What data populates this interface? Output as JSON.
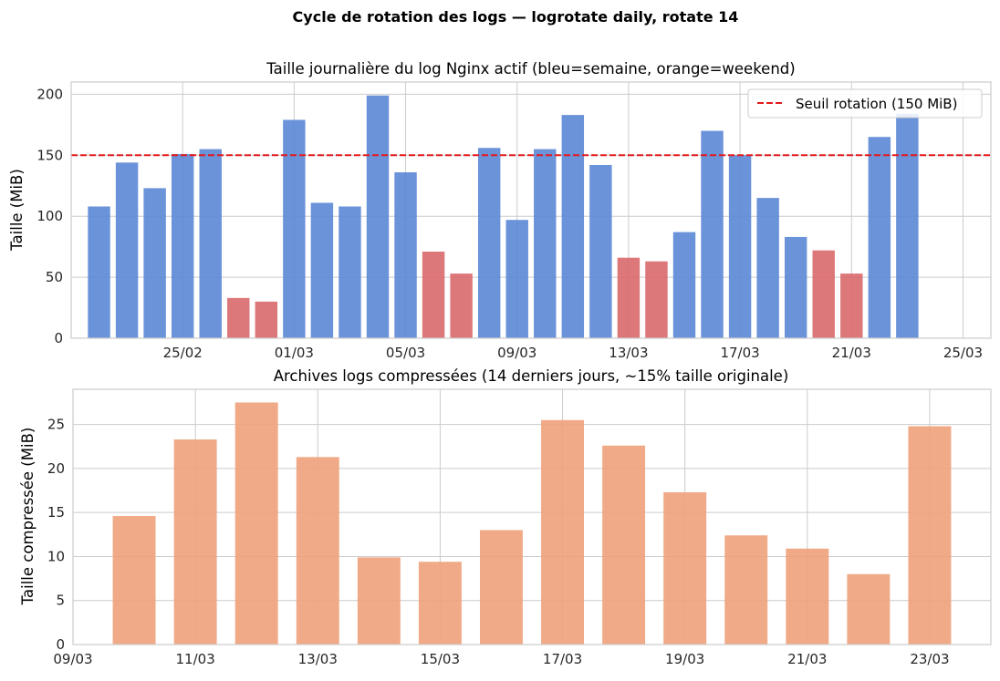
{
  "suptitle": "Cycle de rotation des logs — logrotate daily, rotate 14",
  "chart_data": [
    {
      "type": "bar",
      "title": "Taille journalière du log Nginx actif (bleu=semaine, orange=weekend)",
      "xlabel": "",
      "ylabel": "Taille (MiB)",
      "x_type": "date",
      "xlim": [
        "2025-02-21",
        "2025-03-26"
      ],
      "ylim": [
        0,
        210
      ],
      "yticks": [
        0,
        50,
        100,
        150,
        200
      ],
      "xticks": [
        "2025-02-25",
        "2025-03-01",
        "2025-03-05",
        "2025-03-09",
        "2025-03-13",
        "2025-03-17",
        "2025-03-21",
        "2025-03-25"
      ],
      "xtick_labels": [
        "25/02",
        "01/03",
        "05/03",
        "09/03",
        "13/03",
        "17/03",
        "21/03",
        "25/03"
      ],
      "grid": true,
      "colors": {
        "weekday": "#5b87d6",
        "weekend": "#d9696b",
        "threshold": "#e31a1c"
      },
      "threshold": {
        "value": 150,
        "label": "Seuil rotation (150 MiB)",
        "style": "dashed"
      },
      "legend_position": "top-right",
      "bars": [
        {
          "date": "2025-02-22",
          "value": 108,
          "weekend": false
        },
        {
          "date": "2025-02-23",
          "value": 144,
          "weekend": false
        },
        {
          "date": "2025-02-24",
          "value": 123,
          "weekend": false
        },
        {
          "date": "2025-02-25",
          "value": 151,
          "weekend": false
        },
        {
          "date": "2025-02-26",
          "value": 155,
          "weekend": false
        },
        {
          "date": "2025-02-27",
          "value": 33,
          "weekend": true
        },
        {
          "date": "2025-02-28",
          "value": 30,
          "weekend": true
        },
        {
          "date": "2025-03-01",
          "value": 179,
          "weekend": false
        },
        {
          "date": "2025-03-02",
          "value": 111,
          "weekend": false
        },
        {
          "date": "2025-03-03",
          "value": 108,
          "weekend": false
        },
        {
          "date": "2025-03-04",
          "value": 199,
          "weekend": false
        },
        {
          "date": "2025-03-05",
          "value": 136,
          "weekend": false
        },
        {
          "date": "2025-03-06",
          "value": 71,
          "weekend": true
        },
        {
          "date": "2025-03-07",
          "value": 53,
          "weekend": true
        },
        {
          "date": "2025-03-08",
          "value": 156,
          "weekend": false
        },
        {
          "date": "2025-03-09",
          "value": 97,
          "weekend": false
        },
        {
          "date": "2025-03-10",
          "value": 155,
          "weekend": false
        },
        {
          "date": "2025-03-11",
          "value": 183,
          "weekend": false
        },
        {
          "date": "2025-03-12",
          "value": 142,
          "weekend": false
        },
        {
          "date": "2025-03-13",
          "value": 66,
          "weekend": true
        },
        {
          "date": "2025-03-14",
          "value": 63,
          "weekend": true
        },
        {
          "date": "2025-03-15",
          "value": 87,
          "weekend": false
        },
        {
          "date": "2025-03-16",
          "value": 170,
          "weekend": false
        },
        {
          "date": "2025-03-17",
          "value": 150,
          "weekend": false
        },
        {
          "date": "2025-03-18",
          "value": 115,
          "weekend": false
        },
        {
          "date": "2025-03-19",
          "value": 83,
          "weekend": false
        },
        {
          "date": "2025-03-20",
          "value": 72,
          "weekend": true
        },
        {
          "date": "2025-03-21",
          "value": 53,
          "weekend": true
        },
        {
          "date": "2025-03-22",
          "value": 165,
          "weekend": false
        },
        {
          "date": "2025-03-23",
          "value": 184,
          "weekend": false
        }
      ]
    },
    {
      "type": "bar",
      "title": "Archives logs compressées (14 derniers jours, ~15% taille originale)",
      "xlabel": "",
      "ylabel": "Taille compressée (MiB)",
      "x_type": "date",
      "xlim": [
        "2025-03-09",
        "2025-03-24"
      ],
      "ylim": [
        0,
        29
      ],
      "yticks": [
        0,
        5,
        10,
        15,
        20,
        25
      ],
      "xticks": [
        "2025-03-09",
        "2025-03-11",
        "2025-03-13",
        "2025-03-15",
        "2025-03-17",
        "2025-03-19",
        "2025-03-21",
        "2025-03-23"
      ],
      "xtick_labels": [
        "09/03",
        "11/03",
        "13/03",
        "15/03",
        "17/03",
        "19/03",
        "21/03",
        "23/03"
      ],
      "grid": true,
      "colors": {
        "bar": "#f0a17a"
      },
      "bars": [
        {
          "date": "2025-03-10",
          "value": 14.6
        },
        {
          "date": "2025-03-11",
          "value": 23.3
        },
        {
          "date": "2025-03-12",
          "value": 27.5
        },
        {
          "date": "2025-03-13",
          "value": 21.3
        },
        {
          "date": "2025-03-14",
          "value": 9.9
        },
        {
          "date": "2025-03-15",
          "value": 9.4
        },
        {
          "date": "2025-03-16",
          "value": 13.0
        },
        {
          "date": "2025-03-17",
          "value": 25.5
        },
        {
          "date": "2025-03-18",
          "value": 22.6
        },
        {
          "date": "2025-03-19",
          "value": 17.3
        },
        {
          "date": "2025-03-20",
          "value": 12.4
        },
        {
          "date": "2025-03-21",
          "value": 10.9
        },
        {
          "date": "2025-03-22",
          "value": 8.0
        },
        {
          "date": "2025-03-23",
          "value": 24.8
        }
      ]
    }
  ]
}
